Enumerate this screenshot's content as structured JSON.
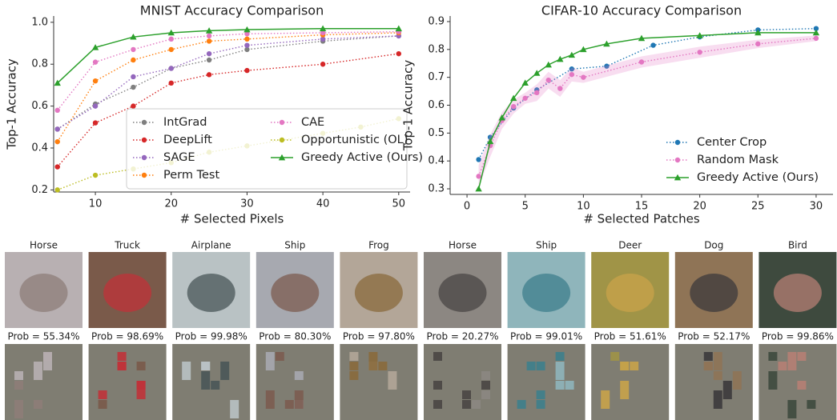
{
  "chart_data": [
    {
      "type": "line",
      "title": "MNIST Accuracy Comparison",
      "xlabel": "# Selected Pixels",
      "ylabel": "Top-1 Accuracy",
      "x": [
        5,
        10,
        15,
        20,
        25,
        30,
        40,
        50
      ],
      "xlim": [
        4.5,
        51.5
      ],
      "ylim": [
        0.19,
        1.03
      ],
      "xticks": [
        10,
        20,
        30,
        40,
        50
      ],
      "yticks": [
        0.2,
        0.4,
        0.6,
        0.8,
        {
          "value": 1,
          "label": "1.0"
        }
      ],
      "legend": "lower right",
      "legend_ncol": 2,
      "legend_frame": true,
      "series": [
        {
          "name": "IntGrad",
          "color": "#7f7f7f",
          "linestyle": "dotted",
          "marker": "circle",
          "values": [
            0.49,
            0.61,
            0.69,
            0.78,
            0.82,
            0.87,
            0.91,
            0.935
          ]
        },
        {
          "name": "DeepLift",
          "color": "#d62728",
          "linestyle": "dotted",
          "marker": "circle",
          "values": [
            0.31,
            0.52,
            0.6,
            0.71,
            0.75,
            0.77,
            0.8,
            0.85
          ]
        },
        {
          "name": "SAGE",
          "color": "#9467bd",
          "linestyle": "dotted",
          "marker": "circle",
          "values": [
            0.49,
            0.6,
            0.74,
            0.78,
            0.85,
            0.89,
            0.92,
            0.935
          ]
        },
        {
          "name": "Perm Test",
          "color": "#ff7f0e",
          "linestyle": "dotted",
          "marker": "circle",
          "values": [
            0.43,
            0.72,
            0.82,
            0.87,
            0.91,
            0.92,
            0.94,
            0.95
          ]
        },
        {
          "name": "CAE",
          "color": "#e377c2",
          "linestyle": "dotted",
          "marker": "circle",
          "values": [
            0.58,
            0.81,
            0.87,
            0.92,
            0.935,
            0.945,
            0.95,
            0.955
          ]
        },
        {
          "name": "Opportunistic (OL)",
          "color": "#bcbd22",
          "linestyle": "dotted",
          "marker": "circle",
          "x": [
            5,
            10,
            15,
            20,
            25,
            30,
            40,
            45,
            50
          ],
          "values": [
            0.2,
            0.27,
            0.3,
            0.33,
            0.38,
            0.41,
            0.47,
            0.5,
            0.54
          ]
        },
        {
          "name": "Greedy Active (Ours)",
          "color": "#2ca02c",
          "linestyle": "solid",
          "marker": "triangle",
          "values": [
            0.71,
            0.88,
            0.93,
            0.95,
            0.96,
            0.965,
            0.97,
            0.97
          ]
        }
      ]
    },
    {
      "type": "line",
      "title": "CIFAR-10 Accuracy Comparison",
      "xlabel": "# Selected Patches",
      "ylabel": "Top-1 Accuracy",
      "xlim": [
        -1.45,
        31.45
      ],
      "ylim": [
        0.28,
        0.92
      ],
      "xticks": [
        0,
        5,
        10,
        15,
        20,
        25,
        30
      ],
      "yticks": [
        0.3,
        0.4,
        0.5,
        0.6,
        0.7,
        0.8,
        0.9
      ],
      "legend": "lower right",
      "legend_ncol": 1,
      "legend_frame": false,
      "series": [
        {
          "name": "Center Crop",
          "color": "#1f77b4",
          "linestyle": "dotted",
          "marker": "circle",
          "x": [
            1,
            2,
            4,
            6,
            9,
            12,
            16,
            20,
            25,
            30
          ],
          "values": [
            0.405,
            0.485,
            0.59,
            0.655,
            0.73,
            0.74,
            0.815,
            0.845,
            0.87,
            0.875
          ]
        },
        {
          "name": "Random Mask",
          "color": "#e377c2",
          "linestyle": "dotted",
          "marker": "circle",
          "x": [
            1,
            2,
            3,
            4,
            5,
            6,
            7,
            8,
            9,
            10,
            15,
            20,
            25,
            30
          ],
          "values": [
            0.345,
            0.455,
            0.545,
            0.595,
            0.625,
            0.645,
            0.69,
            0.66,
            0.71,
            0.7,
            0.755,
            0.79,
            0.82,
            0.84
          ],
          "errors": [
            0.04,
            0.04,
            0.03,
            0.025,
            0.02,
            0.03,
            0.03,
            0.03,
            0.025,
            0.02,
            0.02,
            0.02,
            0.015,
            0.01
          ]
        },
        {
          "name": "Greedy Active (Ours)",
          "color": "#2ca02c",
          "linestyle": "solid",
          "marker": "triangle",
          "x": [
            1,
            2,
            3,
            4,
            5,
            6,
            7,
            8,
            9,
            10,
            12,
            15,
            20,
            25,
            30
          ],
          "values": [
            0.3,
            0.47,
            0.555,
            0.625,
            0.68,
            0.715,
            0.745,
            0.765,
            0.78,
            0.8,
            0.82,
            0.84,
            0.85,
            0.86,
            0.86
          ]
        }
      ]
    }
  ],
  "examples": [
    {
      "label": "Horse",
      "prob": "Prob = 55.34%"
    },
    {
      "label": "Truck",
      "prob": "Prob = 98.69%"
    },
    {
      "label": "Airplane",
      "prob": "Prob = 99.98%"
    },
    {
      "label": "Ship",
      "prob": "Prob = 80.30%"
    },
    {
      "label": "Frog",
      "prob": "Prob = 97.80%"
    },
    {
      "label": "Horse",
      "prob": "Prob = 20.27%"
    },
    {
      "label": "Ship",
      "prob": "Prob = 99.01%"
    },
    {
      "label": "Deer",
      "prob": "Prob = 51.61%"
    },
    {
      "label": "Dog",
      "prob": "Prob = 52.17%"
    },
    {
      "label": "Bird",
      "prob": "Prob = 99.86%"
    }
  ]
}
